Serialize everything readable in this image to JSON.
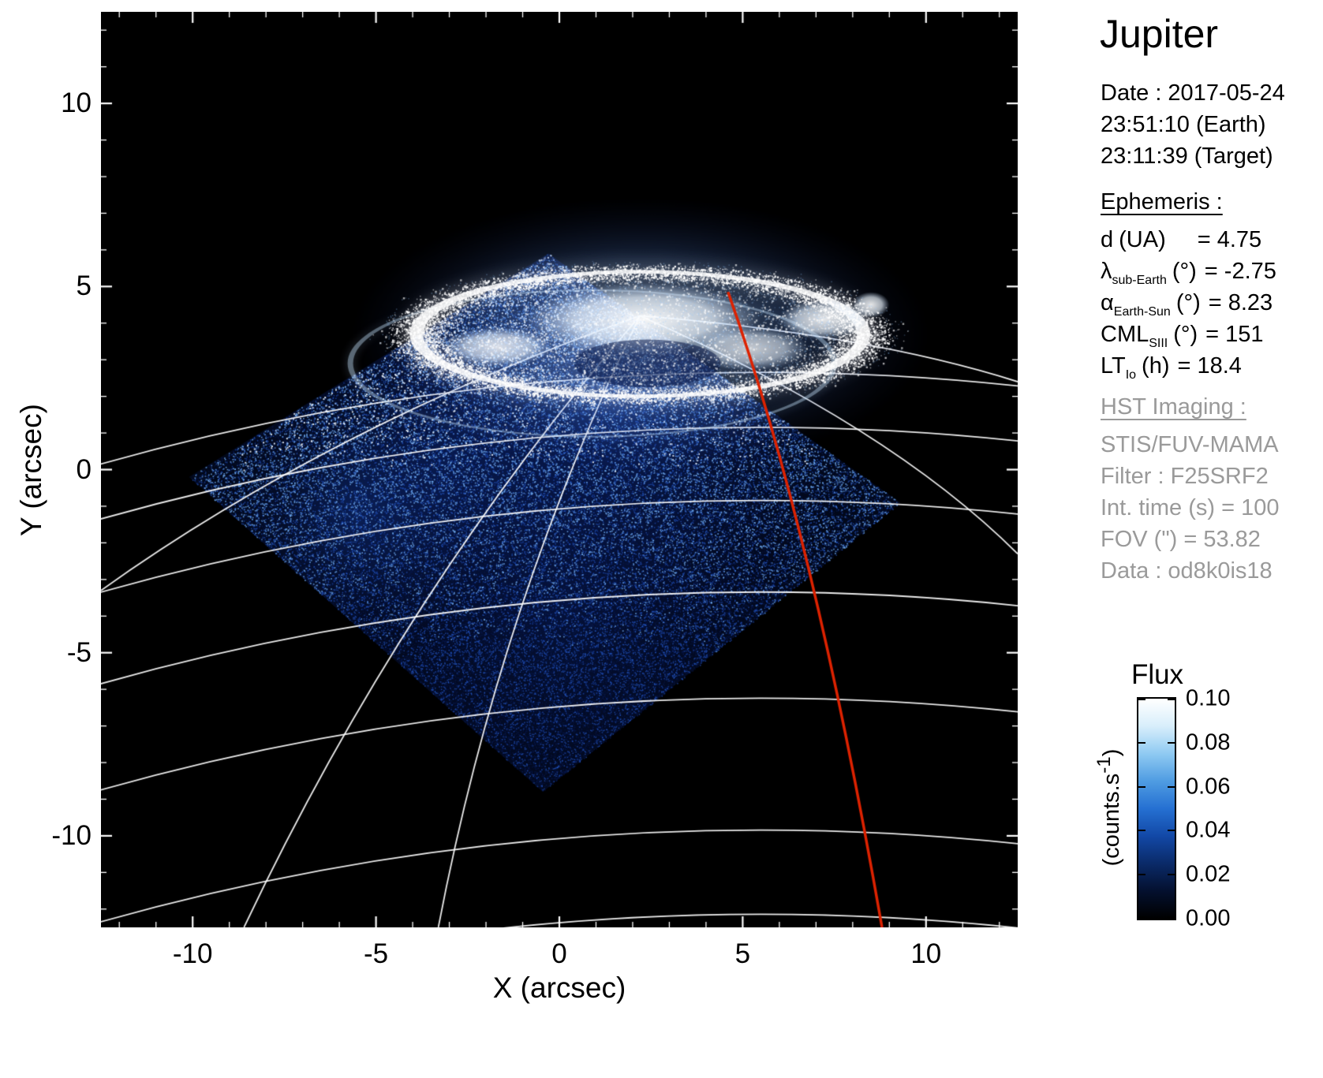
{
  "title": "Jupiter",
  "observation": {
    "date_line": "Date : 2017-05-24",
    "earth_time_line": "23:51:10 (Earth)",
    "target_time_line": "23:11:39 (Target)"
  },
  "ephemeris": {
    "header": "Ephemeris :",
    "rows": [
      {
        "sym": "d",
        "sub": "",
        "unit": "(UA)",
        "value": "= 4.75"
      },
      {
        "sym": "λ",
        "sub": "sub-Earth",
        "unit": "(°)",
        "value": "= -2.75"
      },
      {
        "sym": "α",
        "sub": "Earth-Sun",
        "unit": "(°)",
        "value": "= 8.23"
      },
      {
        "sym": "CML",
        "sub": "SIII",
        "unit": "(°)",
        "value": "= 151"
      },
      {
        "sym": "LT",
        "sub": "Io",
        "unit": "(h)",
        "value": "= 18.4"
      }
    ]
  },
  "hst": {
    "header": "HST Imaging :",
    "lines": [
      "STIS/FUV-MAMA",
      "Filter : F25SRF2",
      "Int. time (s) = 100",
      "FOV (\") = 53.82",
      "Data : od8k0is18"
    ]
  },
  "colorbar": {
    "title": "Flux",
    "unit_parts": {
      "pre": "(counts.s",
      "sup": "-1",
      "post": ")"
    },
    "ticks": [
      "0.10",
      "0.08",
      "0.06",
      "0.04",
      "0.02",
      "0.00"
    ],
    "gradient": [
      "#000000",
      "#04102e",
      "#0a2a68",
      "#1248a6",
      "#2570d2",
      "#4f9ce2",
      "#8fcaf2",
      "#d8eefb",
      "#ffffff"
    ]
  },
  "chart_data": {
    "type": "heatmap",
    "title": "Jupiter",
    "xlabel": "X (arcsec)",
    "ylabel": "Y (arcsec)",
    "xlim": [
      -12.5,
      12.5
    ],
    "ylim": [
      -12.5,
      12.5
    ],
    "x_ticks": [
      -10,
      -5,
      0,
      5,
      10
    ],
    "y_ticks": [
      -10,
      -5,
      0,
      5,
      10
    ],
    "flux_range": [
      0.0,
      0.1
    ],
    "background": "#000000",
    "fov_polygon": [
      [
        -0.3,
        5.9
      ],
      [
        9.3,
        -0.9
      ],
      [
        -0.45,
        -8.8
      ],
      [
        -10.1,
        -0.2
      ]
    ],
    "fov_glows": [
      {
        "c": [
          1.5,
          2.0
        ],
        "r": 7.5,
        "color": "rgba(25,70,190,0.50)"
      },
      {
        "c": [
          -3.0,
          0.3
        ],
        "r": 6.0,
        "color": "rgba(20,60,170,0.35)"
      },
      {
        "c": [
          0.0,
          -3.8
        ],
        "r": 8.5,
        "color": "rgba(12,40,130,0.30)"
      },
      {
        "c": [
          -5.5,
          -1.2
        ],
        "r": 4.5,
        "color": "rgba(30,80,200,0.30)"
      }
    ],
    "aurora": {
      "center": [
        2.2,
        3.7
      ],
      "semi_axes": [
        6.1,
        1.7
      ],
      "secondary": {
        "center": [
          0.9,
          2.9
        ],
        "semi_axes": [
          6.6,
          2.0
        ]
      },
      "dark_notch": {
        "c": [
          2.4,
          2.9
        ],
        "r": [
          2.0,
          0.65
        ]
      },
      "blobs": [
        {
          "c": [
            2.3,
            4.1
          ],
          "r": [
            3.2,
            1.0
          ],
          "a": 0.95
        },
        {
          "c": [
            -1.7,
            3.35
          ],
          "r": [
            1.5,
            0.55
          ],
          "a": 0.85
        },
        {
          "c": [
            7.2,
            4.1
          ],
          "r": [
            1.2,
            0.55
          ],
          "a": 0.9
        },
        {
          "c": [
            8.5,
            4.5
          ],
          "r": [
            0.5,
            0.35
          ],
          "a": 0.9
        },
        {
          "c": [
            5.2,
            3.3
          ],
          "r": [
            1.6,
            0.6
          ],
          "a": 0.75
        }
      ]
    },
    "graticule": {
      "color": "rgba(255,255,255,0.92)",
      "lat_center_x": 5.5,
      "lat_radius": 66,
      "lat_apexes": [
        2.6,
        1.1,
        -0.9,
        -3.4,
        -6.3,
        -9.9,
        -12.2
      ],
      "pole": [
        2.2,
        4.2
      ],
      "meridians": [
        {
          "ctrl": [
            -6.2,
            1.2
          ],
          "end": [
            -12.5,
            -3.3
          ]
        },
        {
          "ctrl": [
            -4.2,
            -3.2
          ],
          "end": [
            -8.6,
            -12.5
          ]
        },
        {
          "ctrl": [
            -1.6,
            -3.6
          ],
          "end": [
            -3.3,
            -12.5
          ]
        },
        {
          "ctrl": [
            9.0,
            1.2
          ],
          "end": [
            12.5,
            -2.3
          ]
        },
        {
          "ctrl": [
            8.4,
            3.7
          ],
          "end": [
            12.5,
            2.4
          ]
        }
      ]
    },
    "red_curve": {
      "color": "#dd2200",
      "start": [
        4.6,
        4.85
      ],
      "ctrl": [
        6.9,
        -1.6
      ],
      "end": [
        8.8,
        -12.5
      ]
    }
  }
}
